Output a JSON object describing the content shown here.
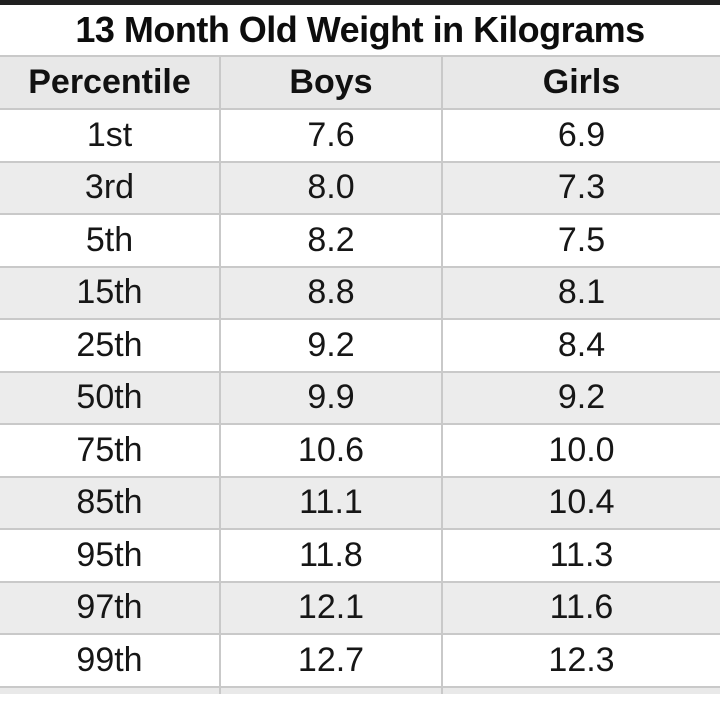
{
  "ui": {
    "background_color": "#ffffff",
    "top_edge_color": "#202020",
    "header_bg_color": "#e8e8e8",
    "stripe_bg_color": "#ececec",
    "border_color": "#c9c9c9",
    "text_color": "#161616"
  },
  "chart_data": {
    "type": "table",
    "title": "13 Month Old Weight in Kilograms",
    "unit": "kilograms",
    "columns": [
      "Percentile",
      "Boys",
      "Girls"
    ],
    "rows": [
      [
        "1st",
        "7.6",
        "6.9"
      ],
      [
        "3rd",
        "8.0",
        "7.3"
      ],
      [
        "5th",
        "8.2",
        "7.5"
      ],
      [
        "15th",
        "8.8",
        "8.1"
      ],
      [
        "25th",
        "9.2",
        "8.4"
      ],
      [
        "50th",
        "9.9",
        "9.2"
      ],
      [
        "75th",
        "10.6",
        "10.0"
      ],
      [
        "85th",
        "11.1",
        "10.4"
      ],
      [
        "95th",
        "11.8",
        "11.3"
      ],
      [
        "97th",
        "12.1",
        "11.6"
      ],
      [
        "99th",
        "12.7",
        "12.3"
      ]
    ]
  }
}
